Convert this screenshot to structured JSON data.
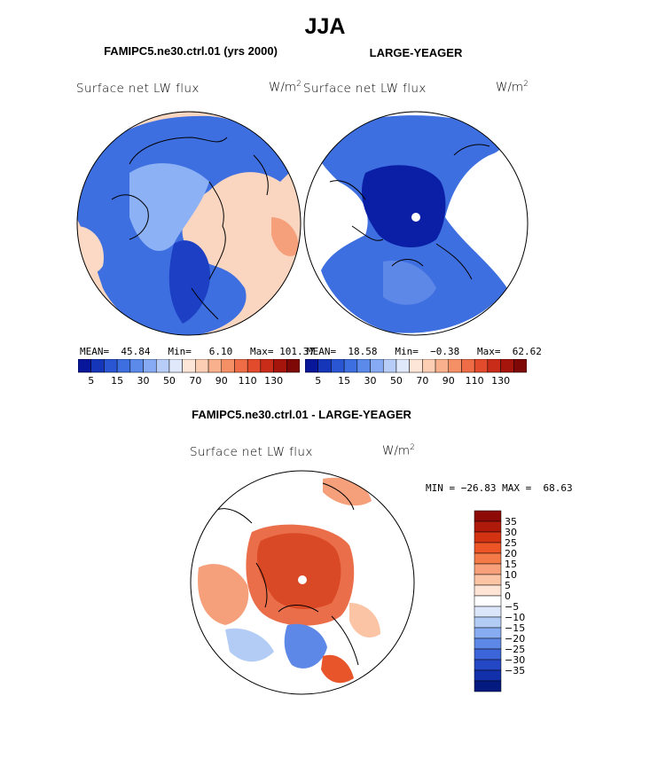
{
  "page_title": "JJA",
  "colors": {
    "ocean_deep_blue": "#0b1fa6",
    "mid_blue": "#3e6fe0",
    "light_blue": "#8cb1f5",
    "pale_peach": "#fbd9c4",
    "salmon": "#f5a07b",
    "orange_red": "#e8552b",
    "dark_red": "#8e0a06",
    "white": "#ffffff",
    "coast": "#000000"
  },
  "chart_data": [
    {
      "type": "heatmap",
      "panel": "top-left",
      "title": "FAMIPC5.ne30.ctrl.01 (yrs 2000)",
      "left_label": "Surface net LW flux",
      "units": "W/m",
      "units_sup": "2",
      "stats_line": "MEAN=  45.84   Min=   6.10   Max= 101.37",
      "stats": {
        "mean": 45.84,
        "min": 6.1,
        "max": 101.37
      },
      "colorbar": {
        "colors": [
          "#08169a",
          "#1536b9",
          "#2a55d3",
          "#3e6fe0",
          "#5b8aeb",
          "#86aaf3",
          "#b7cdf8",
          "#dfe9fb",
          "#fde6d8",
          "#fccfb4",
          "#f9b08d",
          "#f58f66",
          "#ee6d46",
          "#e24b2c",
          "#c92c18",
          "#a5150c",
          "#7d0806"
        ],
        "tick_labels": [
          "5",
          "15",
          "30",
          "50",
          "70",
          "90",
          "110",
          "130"
        ]
      }
    },
    {
      "type": "heatmap",
      "panel": "top-right",
      "title": "LARGE-YEAGER",
      "left_label": "Surface net LW flux",
      "units": "W/m",
      "units_sup": "2",
      "stats_line": "MEAN=  18.58   Min=  −0.38   Max=  62.62",
      "stats": {
        "mean": 18.58,
        "min": -0.38,
        "max": 62.62
      },
      "colorbar": {
        "colors": [
          "#08169a",
          "#1536b9",
          "#2a55d3",
          "#3e6fe0",
          "#5b8aeb",
          "#86aaf3",
          "#b7cdf8",
          "#dfe9fb",
          "#fde6d8",
          "#fccfb4",
          "#f9b08d",
          "#f58f66",
          "#ee6d46",
          "#e24b2c",
          "#c92c18",
          "#a5150c",
          "#7d0806"
        ],
        "tick_labels": [
          "5",
          "15",
          "30",
          "50",
          "70",
          "90",
          "110",
          "130"
        ]
      }
    },
    {
      "type": "heatmap",
      "panel": "bottom",
      "title": "FAMIPC5.ne30.ctrl.01 - LARGE-YEAGER",
      "left_label": "Surface net LW flux",
      "units": "W/m",
      "units_sup": "2",
      "minmax_line": "MIN = −26.83 MAX =  68.63",
      "stats": {
        "min": -26.83,
        "max": 68.63
      },
      "colorbar": {
        "orientation": "vertical",
        "colors": [
          "#8e0a06",
          "#b01a0a",
          "#d43313",
          "#ee5526",
          "#f47a48",
          "#f8a07a",
          "#fbc4a5",
          "#fde4d4",
          "#ffffff",
          "#dbe6fb",
          "#b3ccf6",
          "#88acf1",
          "#5e88e7",
          "#3c65d9",
          "#2447c6",
          "#1230aa",
          "#041a80"
        ],
        "tick_labels": [
          "35",
          "30",
          "25",
          "20",
          "15",
          "10",
          "5",
          "0",
          "−5",
          "−10",
          "−15",
          "−20",
          "−25",
          "−30",
          "−35"
        ]
      }
    }
  ]
}
